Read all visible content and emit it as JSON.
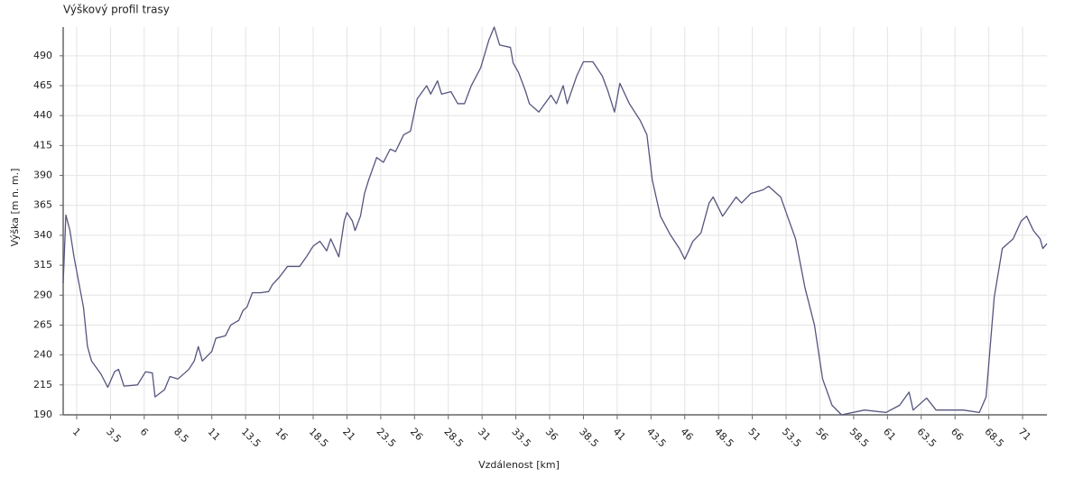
{
  "chart_data": {
    "type": "line",
    "title": "Výškový profil trasy",
    "xlabel": "Vzdálenost [km]",
    "ylabel": "Výška [m n. m.]",
    "color": "#55557f",
    "grid": true,
    "xlim": [
      0,
      72.8
    ],
    "ylim": [
      190,
      514
    ],
    "xticks": [
      1,
      3.5,
      6,
      8.5,
      11,
      13.5,
      16,
      18.5,
      21,
      23.5,
      26,
      28.5,
      31,
      33.5,
      36,
      38.5,
      41,
      43.5,
      46,
      48.5,
      51,
      53.5,
      56,
      58.5,
      61,
      63.5,
      66,
      68.5,
      71
    ],
    "yticks": [
      190,
      215,
      240,
      265,
      290,
      315,
      340,
      365,
      390,
      415,
      440,
      465,
      490
    ],
    "x": [
      0,
      0.2,
      0.5,
      0.8,
      1.5,
      1.8,
      2.1,
      2.8,
      3.3,
      3.8,
      4.1,
      4.5,
      5.5,
      6.1,
      6.6,
      6.8,
      7.5,
      7.9,
      8.5,
      9.3,
      9.7,
      10.0,
      10.3,
      11.0,
      11.3,
      12.0,
      12.4,
      13.0,
      13.3,
      13.6,
      14.0,
      14.6,
      15.2,
      15.5,
      16.0,
      16.6,
      17.5,
      18.0,
      18.5,
      19.0,
      19.5,
      19.8,
      20.4,
      20.8,
      21.0,
      21.4,
      21.6,
      22.0,
      22.3,
      22.6,
      23.2,
      23.7,
      24.2,
      24.6,
      25.2,
      25.7,
      26.2,
      26.9,
      27.2,
      27.7,
      28.0,
      28.7,
      29.2,
      29.7,
      30.2,
      30.9,
      31.5,
      31.9,
      32.3,
      33.1,
      33.3,
      33.7,
      34.2,
      34.5,
      35.2,
      36.1,
      36.5,
      37.0,
      37.3,
      38.0,
      38.5,
      39.2,
      39.9,
      40.3,
      40.8,
      41.2,
      41.9,
      42.7,
      43.2,
      43.6,
      44.2,
      44.9,
      45.6,
      46.0,
      46.6,
      47.2,
      47.8,
      48.1,
      48.8,
      49.8,
      50.2,
      50.9,
      51.8,
      52.2,
      53.1,
      53.6,
      54.2,
      54.9,
      55.6,
      56.2,
      56.9,
      57.6,
      59.3,
      60.9,
      61.9,
      62.6,
      62.9,
      63.9,
      64.6,
      66.6,
      67.8,
      68.3,
      68.9,
      69.5,
      70.3,
      70.9,
      71.3,
      71.8,
      72.3,
      72.5,
      72.8
    ],
    "values": [
      300,
      357,
      344,
      322,
      280,
      247,
      235,
      224,
      213,
      226,
      228,
      214,
      215,
      226,
      225,
      205,
      211,
      222,
      220,
      228,
      235,
      247,
      235,
      243,
      254,
      256,
      265,
      269,
      277,
      280,
      292,
      292,
      293,
      299,
      305,
      314,
      314,
      322,
      331,
      335,
      327,
      337,
      322,
      352,
      359,
      352,
      344,
      356,
      375,
      386,
      405,
      401,
      412,
      410,
      424,
      427,
      454,
      465,
      458,
      469,
      458,
      460,
      450,
      450,
      465,
      480,
      503,
      514,
      499,
      497,
      484,
      476,
      461,
      450,
      443,
      457,
      450,
      465,
      450,
      473,
      485,
      485,
      473,
      461,
      443,
      467,
      450,
      436,
      424,
      386,
      356,
      341,
      329,
      320,
      335,
      342,
      367,
      372,
      356,
      372,
      367,
      375,
      378,
      381,
      372,
      356,
      337,
      296,
      265,
      220,
      198,
      190,
      194,
      192,
      198,
      209,
      194,
      204,
      194,
      194,
      192,
      205,
      288,
      329,
      337,
      352,
      356,
      344,
      337,
      329,
      333
    ]
  }
}
